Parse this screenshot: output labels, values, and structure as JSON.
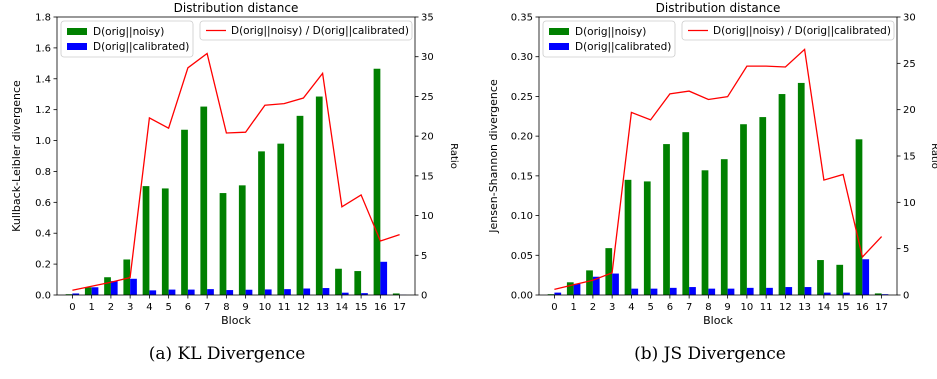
{
  "colors": {
    "noisy": "#008000",
    "calibrated": "#0000ff",
    "ratio": "#ff0000"
  },
  "chart_data": [
    {
      "type": "bar",
      "title": "Distribution distance",
      "xlabel": "Block",
      "ylabel": "Kullback-Leibler divergence",
      "ylabel_right": "Ratio",
      "caption": "(a) KL Divergence",
      "categories": [
        "0",
        "1",
        "2",
        "3",
        "4",
        "5",
        "6",
        "7",
        "8",
        "9",
        "10",
        "11",
        "12",
        "13",
        "14",
        "15",
        "16",
        "17"
      ],
      "ylim": [
        0,
        1.8
      ],
      "yticks": [
        "0.0",
        "0.2",
        "0.4",
        "0.6",
        "0.8",
        "1.0",
        "1.2",
        "1.4",
        "1.6",
        "1.8"
      ],
      "y2lim": [
        0,
        35
      ],
      "y2ticks": [
        "0",
        "5",
        "10",
        "15",
        "20",
        "25",
        "30",
        "35"
      ],
      "legend_placement": "top-left and top-right",
      "series": [
        {
          "name": "D(orig||noisy)",
          "kind": "bar",
          "values": [
            0.005,
            0.05,
            0.115,
            0.23,
            0.705,
            0.69,
            1.07,
            1.22,
            0.66,
            0.71,
            0.93,
            0.98,
            1.16,
            1.285,
            0.17,
            0.155,
            1.465,
            0.01
          ]
        },
        {
          "name": "D(orig||calibrated)",
          "kind": "bar",
          "values": [
            0.01,
            0.05,
            0.09,
            0.105,
            0.03,
            0.035,
            0.035,
            0.038,
            0.032,
            0.034,
            0.036,
            0.038,
            0.042,
            0.045,
            0.015,
            0.012,
            0.215,
            0.001
          ]
        },
        {
          "name": "D(orig||noisy) / D(orig||calibrated)",
          "kind": "line",
          "axis": "right",
          "values": [
            0.6,
            1.1,
            1.6,
            2.2,
            22.3,
            21.0,
            28.6,
            30.4,
            20.4,
            20.5,
            23.9,
            24.1,
            24.8,
            27.9,
            11.1,
            12.6,
            6.8,
            7.6
          ]
        }
      ]
    },
    {
      "type": "bar",
      "title": "Distribution distance",
      "xlabel": "Block",
      "ylabel": "Jensen-Shannon divergence",
      "ylabel_right": "Ratio",
      "caption": "(b) JS Divergence",
      "categories": [
        "0",
        "1",
        "2",
        "3",
        "4",
        "5",
        "6",
        "7",
        "8",
        "9",
        "10",
        "11",
        "12",
        "13",
        "14",
        "15",
        "16",
        "17"
      ],
      "ylim": [
        0,
        0.35
      ],
      "yticks": [
        "0.00",
        "0.05",
        "0.10",
        "0.15",
        "0.20",
        "0.25",
        "0.30",
        "0.35"
      ],
      "y2lim": [
        0,
        30
      ],
      "y2ticks": [
        "0",
        "5",
        "10",
        "15",
        "20",
        "25",
        "30"
      ],
      "legend_placement": "top-left and top-right",
      "series": [
        {
          "name": "D(orig||noisy)",
          "kind": "bar",
          "values": [
            0.001,
            0.016,
            0.031,
            0.059,
            0.145,
            0.143,
            0.19,
            0.205,
            0.157,
            0.171,
            0.215,
            0.224,
            0.253,
            0.267,
            0.044,
            0.038,
            0.196,
            0.002
          ]
        },
        {
          "name": "D(orig||calibrated)",
          "kind": "bar",
          "values": [
            0.003,
            0.014,
            0.023,
            0.027,
            0.008,
            0.008,
            0.009,
            0.01,
            0.008,
            0.008,
            0.009,
            0.009,
            0.01,
            0.01,
            0.003,
            0.003,
            0.045,
            0.001
          ]
        },
        {
          "name": "D(orig||noisy) / D(orig||calibrated)",
          "kind": "line",
          "axis": "right",
          "values": [
            0.6,
            1.1,
            1.6,
            2.4,
            19.7,
            18.9,
            21.7,
            22.0,
            21.1,
            21.4,
            24.7,
            24.7,
            24.6,
            26.5,
            12.4,
            13.0,
            4.1,
            6.3
          ]
        }
      ]
    }
  ]
}
